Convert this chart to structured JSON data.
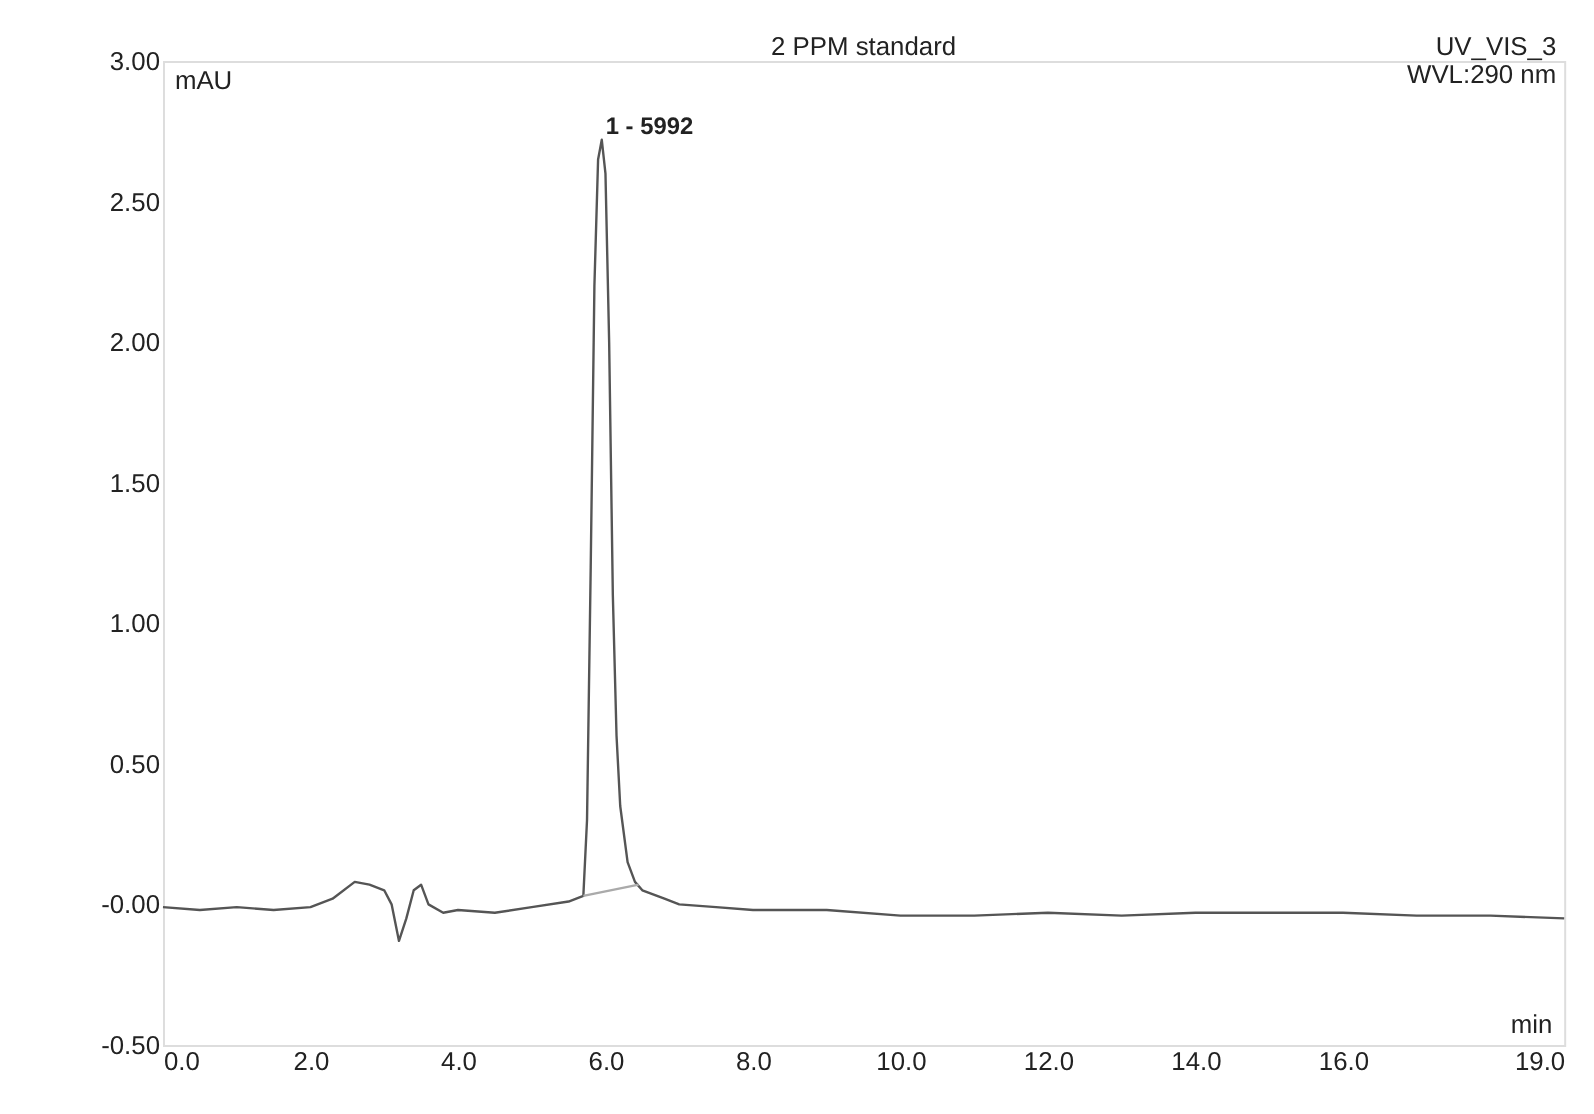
{
  "chart_data": {
    "type": "line",
    "title": "2 PPM standard",
    "xlabel": "min",
    "ylabel": "mAU",
    "annotations": [
      "UV_VIS_3",
      "WVL:290 nm",
      {
        "text": "1 - 5992",
        "x": 5.95,
        "y": 2.72
      }
    ],
    "series": [
      {
        "color": "#555555",
        "x": [
          0.0,
          0.5,
          1.0,
          1.5,
          2.0,
          2.3,
          2.6,
          2.8,
          3.0,
          3.1,
          3.2,
          3.3,
          3.4,
          3.5,
          3.6,
          3.8,
          4.0,
          4.5,
          5.0,
          5.5,
          5.7,
          5.75,
          5.8,
          5.85,
          5.9,
          5.95,
          6.0,
          6.05,
          6.1,
          6.15,
          6.2,
          6.3,
          6.4,
          6.5,
          6.8,
          7.0,
          7.5,
          8.0,
          9.0,
          10.0,
          11.0,
          12.0,
          13.0,
          14.0,
          15.0,
          16.0,
          17.0,
          18.0,
          19.0
        ],
        "values": [
          -0.01,
          -0.02,
          -0.01,
          -0.02,
          -0.01,
          0.02,
          0.08,
          0.07,
          0.05,
          0.0,
          -0.13,
          -0.05,
          0.05,
          0.07,
          0.0,
          -0.03,
          -0.02,
          -0.03,
          -0.01,
          0.01,
          0.03,
          0.3,
          1.2,
          2.2,
          2.65,
          2.72,
          2.6,
          2.0,
          1.1,
          0.6,
          0.35,
          0.15,
          0.08,
          0.05,
          0.02,
          0.0,
          -0.01,
          -0.02,
          -0.02,
          -0.04,
          -0.04,
          -0.03,
          -0.04,
          -0.03,
          -0.03,
          -0.03,
          -0.04,
          -0.04,
          -0.05
        ]
      },
      {
        "color": "#aaaaaa",
        "x": [
          5.7,
          6.45
        ],
        "values": [
          0.03,
          0.07
        ]
      }
    ],
    "xlim": [
      0,
      19
    ],
    "ylim": [
      -0.5,
      3.0
    ],
    "xticks": [
      {
        "value": 0,
        "label": "0.0"
      },
      {
        "value": 2,
        "label": "2.0"
      },
      {
        "value": 4,
        "label": "4.0"
      },
      {
        "value": 6,
        "label": "6.0"
      },
      {
        "value": 8,
        "label": "8.0"
      },
      {
        "value": 10,
        "label": "10.0"
      },
      {
        "value": 12,
        "label": "12.0"
      },
      {
        "value": 14,
        "label": "14.0"
      },
      {
        "value": 16,
        "label": "16.0"
      },
      {
        "value": 19,
        "label": "19.0"
      }
    ],
    "yticks": [
      {
        "value": -0.5,
        "label": "-0.50"
      },
      {
        "value": 0,
        "label": "-0.00"
      },
      {
        "value": 0.5,
        "label": "0.50"
      },
      {
        "value": 1,
        "label": "1.00"
      },
      {
        "value": 1.5,
        "label": "1.50"
      },
      {
        "value": 2,
        "label": "2.00"
      },
      {
        "value": 2.5,
        "label": "2.50"
      },
      {
        "value": 3,
        "label": "3.00"
      }
    ],
    "grid": false,
    "line_style": "solid",
    "marker": "none"
  }
}
